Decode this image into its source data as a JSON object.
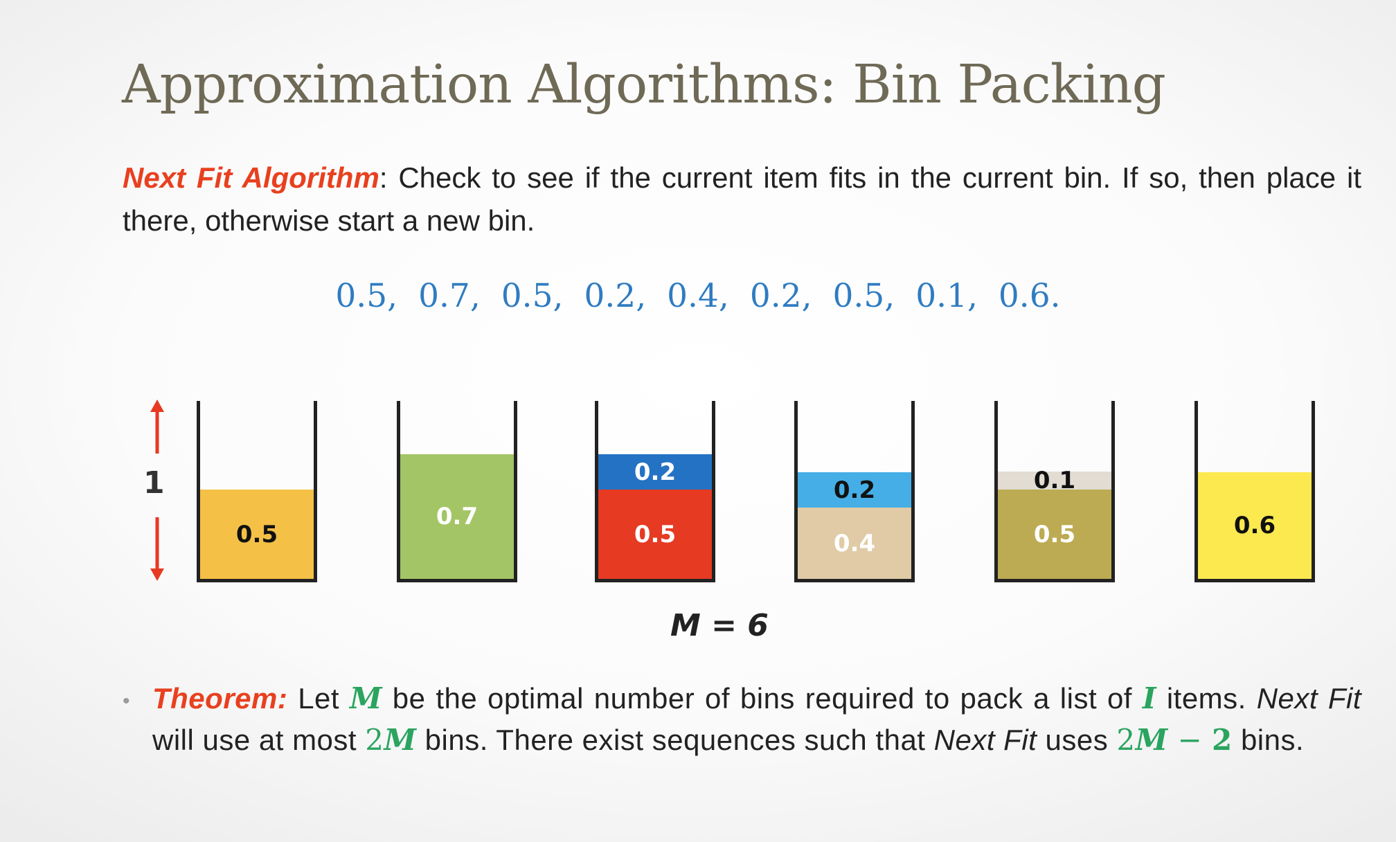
{
  "title": "Approximation Algorithms: Bin Packing",
  "intro": {
    "term": "Next Fit Algorithm",
    "text": ": Check to see if the current item fits in the current bin. If so, then place it there, otherwise start a new bin."
  },
  "sequence": [
    "0.5,",
    "0.7,",
    "0.5,",
    "0.2,",
    "0.4,",
    "0.2,",
    "0.5,",
    "0.1,",
    "0.6."
  ],
  "diagram": {
    "height_label": "1",
    "bins": [
      {
        "items": [
          {
            "label": "0.5",
            "size": 0.5,
            "color": "#f4c046",
            "text_color": "#111111"
          }
        ]
      },
      {
        "items": [
          {
            "label": "0.7",
            "size": 0.7,
            "color": "#a3c566",
            "text_color": "#ffffff"
          }
        ]
      },
      {
        "items": [
          {
            "label": "0.5",
            "size": 0.5,
            "color": "#e63a23",
            "text_color": "#ffffff"
          },
          {
            "label": "0.2",
            "size": 0.2,
            "color": "#2472c4",
            "text_color": "#ffffff"
          }
        ]
      },
      {
        "items": [
          {
            "label": "0.4",
            "size": 0.4,
            "color": "#e0cba6",
            "text_color": "#ffffff"
          },
          {
            "label": "0.2",
            "size": 0.2,
            "color": "#45aee6",
            "text_color": "#111111"
          }
        ]
      },
      {
        "items": [
          {
            "label": "0.5",
            "size": 0.5,
            "color": "#bcab52",
            "text_color": "#ffffff"
          },
          {
            "label": "0.1",
            "size": 0.1,
            "color": "#e2dcd3",
            "text_color": "#111111"
          }
        ]
      },
      {
        "items": [
          {
            "label": "0.6",
            "size": 0.6,
            "color": "#fce94f",
            "text_color": "#111111"
          }
        ]
      }
    ],
    "m_label": "M = 6"
  },
  "theorem": {
    "term": "Theorem:",
    "t1": "Let",
    "m1": "M",
    "t2": "be the optimal number of bins required to pack a list of",
    "i1": "I",
    "t3": "items.",
    "nf1": "Next Fit",
    "t4": "will use at most",
    "m2_num": "2",
    "m2_var": "M",
    "t5": "bins. There exist sequences such that",
    "nf2": "Next Fit",
    "t6": "uses",
    "m3_num": "2",
    "m3_var": "M",
    "m3_minus": " − ",
    "m3_two": "2",
    "t7": "bins.",
    "color": "#2aa45f",
    "term_color": "#e8401f"
  }
}
